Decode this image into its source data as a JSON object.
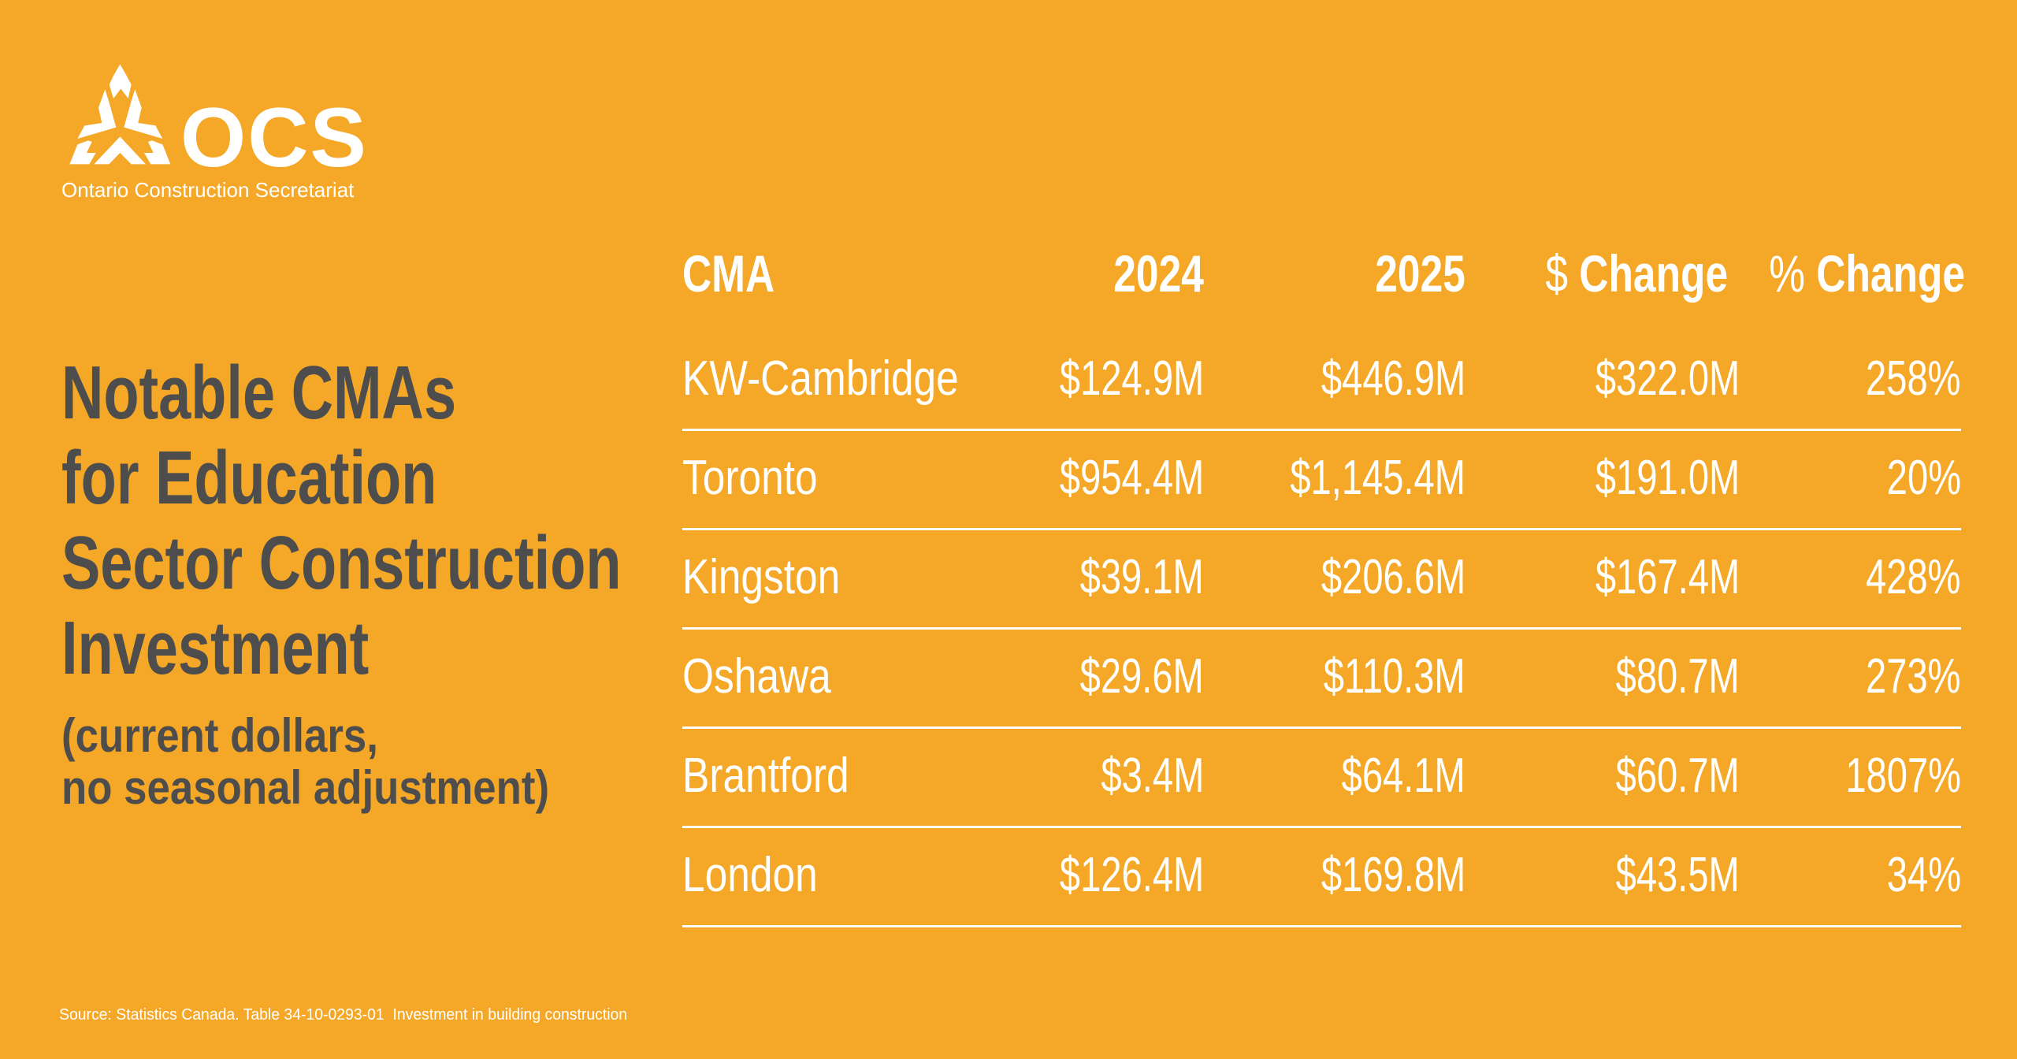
{
  "logo": {
    "name": "OCS",
    "tagline": "Ontario Construction Secretariat",
    "icon": "ocs-triangle-mark-icon"
  },
  "title": {
    "lines": [
      "Notable CMAs",
      "for Education",
      "Sector Construction",
      "Investment"
    ],
    "subtitle_lines": [
      "(current dollars,",
      "no seasonal adjustment)"
    ]
  },
  "table": {
    "columns": [
      {
        "label": "CMA"
      },
      {
        "label": "2024"
      },
      {
        "label": "2025"
      },
      {
        "symbol": "$",
        "label": "Change"
      },
      {
        "symbol": "%",
        "label": "Change"
      }
    ],
    "rows": [
      {
        "cma": "KW-Cambridge",
        "y2024": "$124.9M",
        "y2025": "$446.9M",
        "dollar_change": "$322.0M",
        "pct_change": "258%"
      },
      {
        "cma": "Toronto",
        "y2024": "$954.4M",
        "y2025": "$1,145.4M",
        "dollar_change": "$191.0M",
        "pct_change": "20%"
      },
      {
        "cma": "Kingston",
        "y2024": "$39.1M",
        "y2025": "$206.6M",
        "dollar_change": "$167.4M",
        "pct_change": "428%"
      },
      {
        "cma": "Oshawa",
        "y2024": "$29.6M",
        "y2025": "$110.3M",
        "dollar_change": "$80.7M",
        "pct_change": "273%"
      },
      {
        "cma": "Brantford",
        "y2024": "$3.4M",
        "y2025": "$64.1M",
        "dollar_change": "$60.7M",
        "pct_change": "1807%"
      },
      {
        "cma": "London",
        "y2024": "$126.4M",
        "y2025": "$169.8M",
        "dollar_change": "$43.5M",
        "pct_change": "34%"
      }
    ]
  },
  "source": "Source: Statistics Canada. Table 34-10-0293-01  Investment in building construction",
  "colors": {
    "background": "#F5A827",
    "title_text": "#4D4D4D",
    "table_text": "#FFFFFF"
  }
}
